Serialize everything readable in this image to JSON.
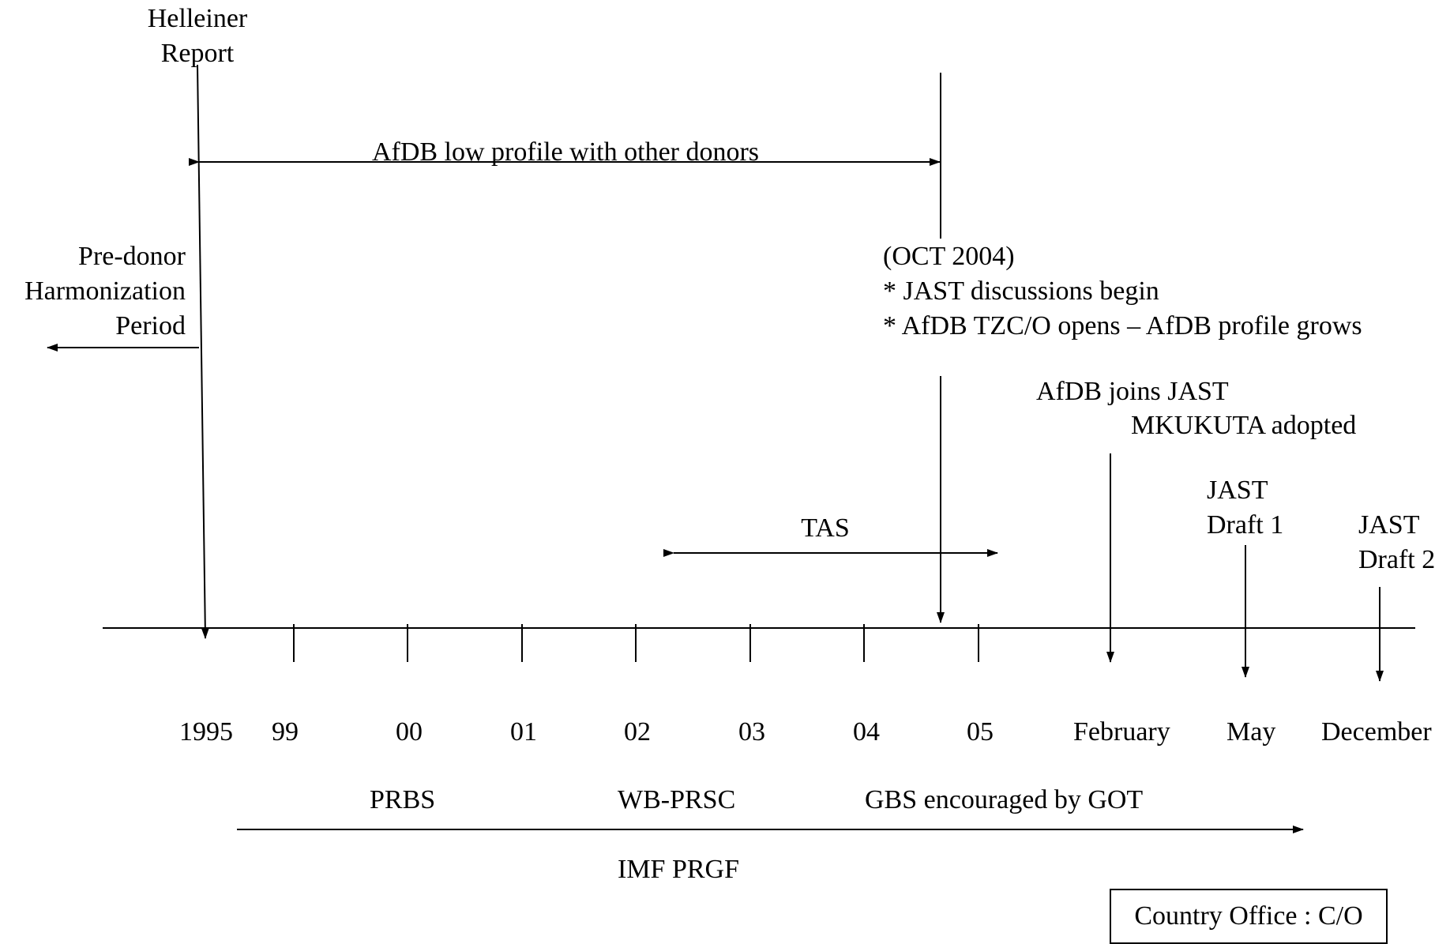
{
  "top": {
    "helleiner": [
      "Helleiner",
      "Report"
    ],
    "low_profile": "AfDB low profile with other donors",
    "pre_donor": [
      "Pre-donor",
      "Harmonization",
      "Period"
    ]
  },
  "oct2004": {
    "title": "(OCT 2004)",
    "items": [
      "* JAST discussions begin",
      "* AfDB  TZC/O opens – AfDB profile grows"
    ]
  },
  "events": {
    "afdb_joins": "AfDB joins JAST",
    "mkukuta": "MKUKUTA adopted",
    "draft1": [
      "JAST",
      "Draft 1"
    ],
    "draft2": [
      "JAST",
      "Draft 2"
    ],
    "tas": "TAS"
  },
  "axis": {
    "ticks": [
      "1995",
      "99",
      "00",
      "01",
      "02",
      "03",
      "04",
      "05",
      "February",
      "May",
      "December"
    ]
  },
  "bottom": {
    "prbs": "PRBS",
    "wb_prsc": "WB-PRSC",
    "gbs": "GBS encouraged by GOT",
    "imf": "IMF PRGF"
  },
  "legend": "Country Office : C/O"
}
